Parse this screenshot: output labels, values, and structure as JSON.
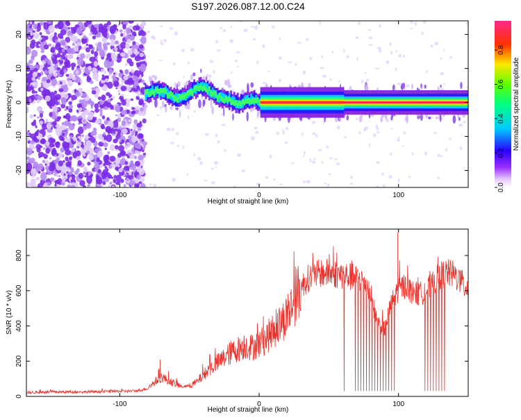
{
  "title": "S197.2026.087.12.00.C24",
  "colors": {
    "snr_line": "#e8322c",
    "axis": "#000000",
    "spectro_low": "#8a2be2"
  },
  "chart_data": [
    {
      "type": "heatmap",
      "xlabel": "Height of straight line (km)",
      "ylabel": "Frequency (Hz)",
      "xlim": [
        -167,
        150
      ],
      "ylim": [
        -25,
        24
      ],
      "x_ticks": [
        "-100",
        "0",
        "100"
      ],
      "x_tick_values": [
        -100,
        0,
        100
      ],
      "y_ticks": [
        "-20",
        "-10",
        "0",
        "10",
        "20"
      ],
      "y_tick_values": [
        -20,
        -10,
        0,
        10,
        20
      ],
      "colorbar": {
        "label": "Normalized spectral amplitude",
        "ticks": [
          "0.0",
          "0.2",
          "0.4",
          "0.6",
          "0.8"
        ],
        "tick_values": [
          0.0,
          0.2,
          0.4,
          0.6,
          0.8
        ],
        "range": [
          0,
          0.97
        ],
        "colormap": "rainbow"
      },
      "ridge": {
        "x": [
          -82,
          -75,
          -68,
          -60,
          -55,
          -50,
          -44,
          -40,
          -35,
          -30,
          -25,
          -20,
          -15,
          -10,
          -5,
          0,
          20,
          40,
          60,
          80,
          100,
          120,
          140,
          150
        ],
        "freq": [
          2.5,
          3.5,
          3.0,
          1.0,
          1.5,
          3.0,
          4.5,
          4.5,
          3.0,
          1.5,
          1.0,
          0.5,
          -0.5,
          0.5,
          0.8,
          0.0,
          0.0,
          0.0,
          0.0,
          0.0,
          0.0,
          0.0,
          0.0,
          0.0
        ]
      },
      "noise_region": {
        "x_range": [
          -167,
          -82
        ],
        "description_free": true
      }
    },
    {
      "type": "line",
      "xlabel": "Height of straight line (km)",
      "ylabel": "SNR (10 * v/v)",
      "xlim": [
        -167,
        150
      ],
      "ylim": [
        0,
        950
      ],
      "x_ticks": [
        "-100",
        "0",
        "100"
      ],
      "x_tick_values": [
        -100,
        0,
        100
      ],
      "y_ticks": [
        "0",
        "200",
        "400",
        "600",
        "800"
      ],
      "y_tick_values": [
        0,
        200,
        400,
        600,
        800
      ],
      "series": [
        {
          "x": [
            -167,
            -150,
            -130,
            -110,
            -90,
            -85,
            -80,
            -75,
            -70,
            -65,
            -60,
            -55,
            -50,
            -45,
            -40,
            -35,
            -30,
            -25,
            -20,
            -15,
            -10,
            -5,
            0,
            5,
            10,
            15,
            20,
            25,
            30,
            35,
            40,
            45,
            50,
            55,
            60,
            65,
            70,
            75,
            80,
            85,
            90,
            95,
            100,
            105,
            110,
            115,
            120,
            125,
            130,
            135,
            140,
            145,
            150
          ],
          "y": [
            22,
            25,
            25,
            28,
            30,
            35,
            45,
            80,
            110,
            90,
            70,
            55,
            60,
            80,
            120,
            160,
            190,
            220,
            250,
            270,
            290,
            280,
            300,
            330,
            370,
            410,
            460,
            540,
            620,
            670,
            690,
            700,
            700,
            695,
            690,
            680,
            670,
            660,
            580,
            420,
            380,
            530,
            610,
            630,
            590,
            580,
            600,
            640,
            690,
            700,
            690,
            650,
            600
          ]
        }
      ],
      "spike_x": [
        -71,
        99.5
      ],
      "spike_y": [
        210,
        930
      ],
      "dropout_x": [
        61,
        69,
        71,
        73,
        75,
        77,
        79,
        81,
        83,
        85,
        87,
        89,
        91,
        93,
        95,
        97,
        119,
        121,
        123,
        125,
        127,
        129,
        131,
        133
      ]
    }
  ]
}
